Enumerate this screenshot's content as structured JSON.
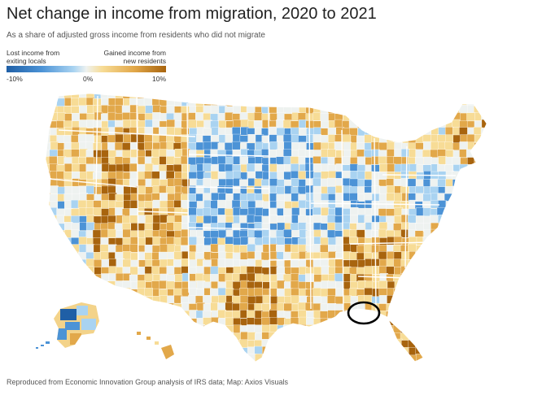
{
  "header": {
    "title": "Net change in income from migration, 2020 to 2021",
    "subtitle": "As a share of adjusted gross income from residents who did not migrate"
  },
  "legend": {
    "left_label": "Lost income from exiting locals",
    "right_label": "Gained income from new residents",
    "tick_min": "-10%",
    "tick_mid": "0%",
    "tick_max": "10%",
    "scale_min": -10,
    "scale_max": 10
  },
  "map": {
    "type": "choropleth",
    "region": "United States counties",
    "colors": {
      "strong_loss": "#1f5fa6",
      "moderate_loss": "#4c93d6",
      "slight_loss": "#a9d3f1",
      "neutral": "#eef2f0",
      "slight_gain": "#f7dc96",
      "moderate_gain": "#e2a84a",
      "strong_gain": "#a8640e",
      "border": "#ffffff",
      "annotation": "#000000"
    },
    "annotation": {
      "shape": "hand-drawn circle",
      "location": "Florida panhandle"
    }
  },
  "footer": {
    "source": "Reproduced from Economic Innovation Group analysis of IRS data; Map: Axios Visuals"
  }
}
